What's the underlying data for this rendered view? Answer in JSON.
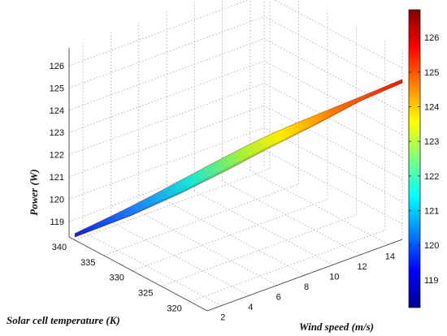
{
  "chart_data": {
    "type": "surface3d",
    "title": "",
    "xlabel": "Wind speed (m/s)",
    "ylabel": "Solar cell temperature (K)",
    "zlabel": "Power (W)",
    "x_ticks": [
      2,
      4,
      6,
      8,
      10,
      12,
      14
    ],
    "y_ticks": [
      340,
      335,
      330,
      325,
      320
    ],
    "z_ticks": [
      119,
      120,
      121,
      122,
      123,
      124,
      125,
      126
    ],
    "colorbar_ticks": [
      119,
      120,
      121,
      122,
      123,
      124,
      125,
      126
    ],
    "colormap": "jet",
    "grid": true,
    "x_range": [
      1,
      15
    ],
    "y_range": [
      317,
      341
    ],
    "z_range": [
      118.3,
      126.8
    ],
    "colorbar_range": [
      118.2,
      126.8
    ],
    "surface": {
      "note_start": [
        1,
        340,
        118.5
      ],
      "end": [
        15,
        317,
        125.4
      ],
      "samples": [
        {
          "wind": 1,
          "temperature": 340,
          "power": 118.5
        },
        {
          "wind": 3,
          "temperature": 335,
          "power": 119.8
        },
        {
          "wind": 5,
          "temperature": 331,
          "power": 121.0
        },
        {
          "wind": 7,
          "temperature": 328,
          "power": 122.0
        },
        {
          "wind": 9,
          "temperature": 325,
          "power": 123.0
        },
        {
          "wind": 11,
          "temperature": 322,
          "power": 123.9
        },
        {
          "wind": 13,
          "temperature": 319.5,
          "power": 124.7
        },
        {
          "wind": 15,
          "temperature": 317,
          "power": 125.4
        }
      ]
    }
  }
}
